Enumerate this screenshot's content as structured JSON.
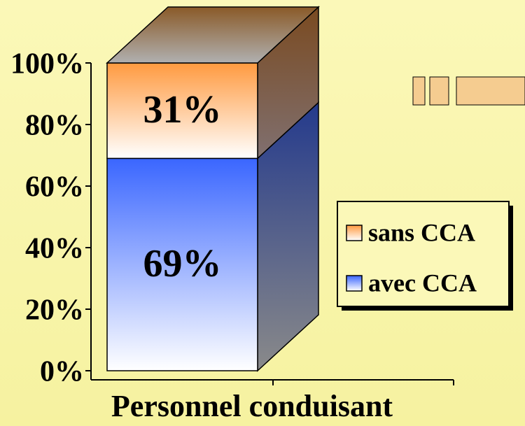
{
  "chart_data": {
    "type": "stacked-bar-3d",
    "categories": [
      "Personnel conduisant"
    ],
    "series": [
      {
        "name": "avec CCA",
        "color": "#3a66ff",
        "values": [
          69
        ],
        "value_labels": [
          "69%"
        ]
      },
      {
        "name": "sans CCA",
        "color": "#ff9a40",
        "values": [
          31
        ],
        "value_labels": [
          "31%"
        ]
      }
    ],
    "ylim": [
      0,
      100
    ],
    "yticks": [
      {
        "value": 0,
        "label": "0%"
      },
      {
        "value": 20,
        "label": "20%"
      },
      {
        "value": 40,
        "label": "40%"
      },
      {
        "value": 60,
        "label": "60%"
      },
      {
        "value": 80,
        "label": "80%"
      },
      {
        "value": 100,
        "label": "100%"
      }
    ],
    "legend": "right"
  }
}
